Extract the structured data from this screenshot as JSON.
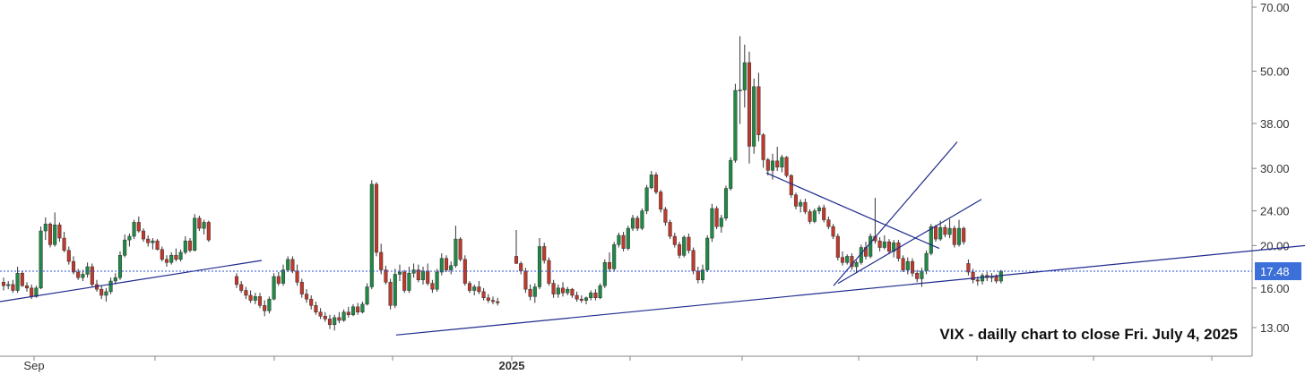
{
  "chart_data": {
    "type": "candlestick",
    "title": "VIX - dailly chart to close Fri. July 4, 2025",
    "y_scale": "log",
    "ylim": [
      11.8,
      72
    ],
    "y_ticks": [
      "70.00",
      "50.00",
      "38.00",
      "30.00",
      "24.00",
      "20.00",
      "16.00",
      "13.00"
    ],
    "x_labels": [
      {
        "label": "Sep",
        "bold": false,
        "index": 10
      },
      {
        "label": "2025",
        "bold": true,
        "index": 250
      }
    ],
    "last_price": {
      "label": "17.48",
      "value": 17.48
    },
    "colors": {
      "up": "#1e8a45",
      "down": "#c0392b",
      "wick": "#333333",
      "trendline": "#1f2a8c",
      "price_line": "#2a4fd6",
      "price_tag": "#3c6fd8"
    },
    "candles": [
      [
        16.5,
        16.9,
        15.8,
        16.2
      ],
      [
        16.2,
        16.6,
        15.9,
        16.3
      ],
      [
        16.3,
        16.7,
        15.6,
        15.8
      ],
      [
        15.8,
        17.9,
        15.6,
        17.3
      ],
      [
        17.3,
        17.5,
        16.1,
        16.2
      ],
      [
        16.2,
        16.5,
        15.7,
        16.0
      ],
      [
        16.0,
        16.3,
        15.1,
        15.3
      ],
      [
        15.3,
        16.2,
        15.2,
        16.0
      ],
      [
        16.0,
        22.1,
        15.9,
        21.6
      ],
      [
        21.6,
        23.2,
        20.6,
        22.4
      ],
      [
        22.4,
        22.6,
        19.8,
        20.1
      ],
      [
        20.1,
        23.8,
        19.9,
        22.3
      ],
      [
        22.3,
        22.6,
        20.4,
        20.8
      ],
      [
        20.8,
        21.5,
        19.3,
        19.5
      ],
      [
        19.5,
        19.9,
        18.1,
        18.4
      ],
      [
        18.4,
        18.9,
        17.2,
        17.4
      ],
      [
        17.4,
        17.7,
        16.7,
        16.9
      ],
      [
        16.9,
        17.6,
        16.6,
        17.2
      ],
      [
        17.2,
        18.3,
        16.9,
        17.9
      ],
      [
        17.9,
        18.2,
        16.1,
        16.3
      ],
      [
        16.3,
        16.7,
        15.7,
        15.9
      ],
      [
        15.9,
        16.2,
        15.1,
        15.4
      ],
      [
        15.4,
        16.0,
        14.9,
        15.7
      ],
      [
        15.7,
        16.9,
        15.5,
        16.6
      ],
      [
        16.6,
        17.3,
        16.3,
        16.9
      ],
      [
        16.9,
        19.4,
        16.7,
        19.0
      ],
      [
        19.0,
        21.2,
        18.8,
        20.6
      ],
      [
        20.6,
        21.3,
        19.9,
        21.0
      ],
      [
        21.0,
        22.9,
        20.7,
        22.6
      ],
      [
        22.6,
        23.3,
        21.4,
        21.6
      ],
      [
        21.6,
        21.9,
        20.4,
        20.7
      ],
      [
        20.7,
        21.1,
        19.9,
        20.3
      ],
      [
        20.3,
        20.8,
        19.6,
        20.5
      ],
      [
        20.5,
        20.7,
        19.5,
        19.6
      ],
      [
        19.6,
        19.9,
        18.4,
        18.6
      ],
      [
        18.6,
        19.0,
        17.9,
        18.3
      ],
      [
        18.3,
        19.3,
        18.1,
        19.0
      ],
      [
        19.0,
        19.7,
        18.4,
        18.6
      ],
      [
        18.6,
        19.6,
        18.4,
        19.3
      ],
      [
        19.3,
        21.0,
        19.1,
        20.5
      ],
      [
        20.5,
        20.8,
        19.3,
        19.5
      ],
      [
        19.5,
        23.6,
        19.4,
        23.1
      ],
      [
        23.1,
        23.4,
        21.6,
        21.9
      ],
      [
        21.9,
        22.9,
        21.2,
        22.6
      ],
      [
        22.6,
        22.8,
        20.4,
        20.6
      ],
      null,
      null,
      null,
      null,
      null,
      [
        17.0,
        17.3,
        16.0,
        16.3
      ],
      [
        16.3,
        16.6,
        15.6,
        15.8
      ],
      [
        15.8,
        16.1,
        15.1,
        15.4
      ],
      [
        15.4,
        15.8,
        14.8,
        15.0
      ],
      [
        15.0,
        15.6,
        14.7,
        15.3
      ],
      [
        15.3,
        15.6,
        14.4,
        14.6
      ],
      [
        14.6,
        15.0,
        13.8,
        14.2
      ],
      [
        14.2,
        15.3,
        14.0,
        15.1
      ],
      [
        15.1,
        17.3,
        15.0,
        17.0
      ],
      [
        17.0,
        17.4,
        16.2,
        16.4
      ],
      [
        16.4,
        18.1,
        16.2,
        17.6
      ],
      [
        17.6,
        18.9,
        17.4,
        18.6
      ],
      [
        18.6,
        18.9,
        17.3,
        17.5
      ],
      [
        17.5,
        18.1,
        16.2,
        16.5
      ],
      [
        16.5,
        16.8,
        15.2,
        15.5
      ],
      [
        15.5,
        15.9,
        14.8,
        15.1
      ],
      [
        15.1,
        15.4,
        14.3,
        14.6
      ],
      [
        14.6,
        14.9,
        13.9,
        14.1
      ],
      [
        14.1,
        14.4,
        13.6,
        13.8
      ],
      [
        13.8,
        14.1,
        13.4,
        13.6
      ],
      [
        13.6,
        13.9,
        12.9,
        13.2
      ],
      [
        13.2,
        13.9,
        12.8,
        13.7
      ],
      [
        13.7,
        14.1,
        13.3,
        13.5
      ],
      [
        13.5,
        14.3,
        13.4,
        14.1
      ],
      [
        14.1,
        14.5,
        13.7,
        13.9
      ],
      [
        13.9,
        14.7,
        13.8,
        14.5
      ],
      [
        14.5,
        14.8,
        13.9,
        14.1
      ],
      [
        14.1,
        14.9,
        14.0,
        14.7
      ],
      [
        14.7,
        16.4,
        14.6,
        16.1
      ],
      [
        16.1,
        28.2,
        15.9,
        27.6
      ],
      [
        27.6,
        27.9,
        18.9,
        19.3
      ],
      [
        19.3,
        20.2,
        17.2,
        17.6
      ],
      [
        17.6,
        18.0,
        16.3,
        16.5
      ],
      [
        16.5,
        16.8,
        14.3,
        14.6
      ],
      [
        14.6,
        17.7,
        14.4,
        17.2
      ],
      [
        17.2,
        18.1,
        16.6,
        17.4
      ],
      [
        17.4,
        17.6,
        15.6,
        15.8
      ],
      [
        15.8,
        17.9,
        15.6,
        17.3
      ],
      [
        17.3,
        18.2,
        16.9,
        17.6
      ],
      [
        17.6,
        18.1,
        16.5,
        16.7
      ],
      [
        16.7,
        17.9,
        16.3,
        17.5
      ],
      [
        17.5,
        18.2,
        16.2,
        16.4
      ],
      [
        16.4,
        16.7,
        15.6,
        15.9
      ],
      [
        15.9,
        17.7,
        15.7,
        17.4
      ],
      [
        17.4,
        19.2,
        17.1,
        18.7
      ],
      [
        18.7,
        19.0,
        17.4,
        17.6
      ],
      [
        17.6,
        18.4,
        17.2,
        18.0
      ],
      [
        18.0,
        22.2,
        17.8,
        20.7
      ],
      [
        20.7,
        20.9,
        18.4,
        18.6
      ],
      [
        18.6,
        19.0,
        16.2,
        16.4
      ],
      [
        16.4,
        16.6,
        15.6,
        15.8
      ],
      [
        15.8,
        16.3,
        15.4,
        16.1
      ],
      [
        16.1,
        16.6,
        15.5,
        15.7
      ],
      [
        15.7,
        16.0,
        15.0,
        15.2
      ],
      [
        15.2,
        15.5,
        14.8,
        15.0
      ],
      [
        15.0,
        15.3,
        14.7,
        14.9
      ],
      [
        14.9,
        15.2,
        14.6,
        14.8
      ],
      null,
      null,
      null,
      [
        18.9,
        21.7,
        18.7,
        18.2
      ],
      [
        18.2,
        18.4,
        17.2,
        17.5
      ],
      [
        17.5,
        17.8,
        15.6,
        15.9
      ],
      [
        15.9,
        16.3,
        15.0,
        15.3
      ],
      [
        15.3,
        16.4,
        14.8,
        16.1
      ],
      [
        16.1,
        20.8,
        15.9,
        19.9
      ],
      [
        19.9,
        20.3,
        18.2,
        18.5
      ],
      [
        18.5,
        18.8,
        16.2,
        16.4
      ],
      [
        16.4,
        16.7,
        15.2,
        15.5
      ],
      [
        15.5,
        16.3,
        15.2,
        16.0
      ],
      [
        16.0,
        16.5,
        15.3,
        15.6
      ],
      [
        15.6,
        16.1,
        15.4,
        15.9
      ],
      [
        15.9,
        16.0,
        15.2,
        15.4
      ],
      [
        15.4,
        15.7,
        14.9,
        15.1
      ],
      [
        15.1,
        15.4,
        14.8,
        15.0
      ],
      [
        15.0,
        15.3,
        14.7,
        15.2
      ],
      [
        15.2,
        15.8,
        15.0,
        15.6
      ],
      [
        15.6,
        15.9,
        15.0,
        15.2
      ],
      [
        15.2,
        16.4,
        15.1,
        16.2
      ],
      [
        16.2,
        18.6,
        16.0,
        18.3
      ],
      [
        18.3,
        19.3,
        17.4,
        17.7
      ],
      [
        17.7,
        20.4,
        17.5,
        20.1
      ],
      [
        20.1,
        21.4,
        19.8,
        21.1
      ],
      [
        21.1,
        21.5,
        19.4,
        19.7
      ],
      [
        19.7,
        22.2,
        19.5,
        21.9
      ],
      [
        21.9,
        23.5,
        21.6,
        23.1
      ],
      [
        23.1,
        23.4,
        21.6,
        21.9
      ],
      [
        21.9,
        24.3,
        21.7,
        24.0
      ],
      [
        24.0,
        27.5,
        23.6,
        27.1
      ],
      [
        27.1,
        29.6,
        26.9,
        29.0
      ],
      [
        29.0,
        29.4,
        26.2,
        26.5
      ],
      [
        26.5,
        26.8,
        23.8,
        24.2
      ],
      [
        24.2,
        24.5,
        22.2,
        22.6
      ],
      [
        22.6,
        22.9,
        20.7,
        21.0
      ],
      [
        21.0,
        21.4,
        19.8,
        20.1
      ],
      [
        20.1,
        20.4,
        18.7,
        19.0
      ],
      [
        19.0,
        21.1,
        18.8,
        20.9
      ],
      [
        20.9,
        21.3,
        19.2,
        19.5
      ],
      [
        19.5,
        19.8,
        17.2,
        17.5
      ],
      [
        17.5,
        17.9,
        16.4,
        16.7
      ],
      [
        16.7,
        18.1,
        16.4,
        17.6
      ],
      [
        17.6,
        21.1,
        17.4,
        20.8
      ],
      [
        20.8,
        24.9,
        20.4,
        24.3
      ],
      [
        24.3,
        24.6,
        21.8,
        22.1
      ],
      [
        22.1,
        23.5,
        21.4,
        23.1
      ],
      [
        23.1,
        27.4,
        22.8,
        27.0
      ],
      [
        27.0,
        31.8,
        26.7,
        31.3
      ],
      [
        31.3,
        46.8,
        30.9,
        45.2
      ],
      [
        45.2,
        60.1,
        37.9,
        45.3
      ],
      [
        45.3,
        57.5,
        41.3,
        52.3
      ],
      [
        52.3,
        55.4,
        30.8,
        33.7
      ],
      [
        33.7,
        48.1,
        32.4,
        46.1
      ],
      [
        46.1,
        49.6,
        34.6,
        35.8
      ],
      [
        35.8,
        36.1,
        30.1,
        31.4
      ],
      [
        31.4,
        31.7,
        28.9,
        29.7
      ],
      [
        29.7,
        32.4,
        28.3,
        31.2
      ],
      [
        31.2,
        33.6,
        29.6,
        30.2
      ],
      [
        30.2,
        32.2,
        29.4,
        31.8
      ],
      [
        31.8,
        32.0,
        28.6,
        28.9
      ],
      [
        28.9,
        29.1,
        25.7,
        26.1
      ],
      [
        26.1,
        26.4,
        24.2,
        24.6
      ],
      [
        24.6,
        25.5,
        23.8,
        25.1
      ],
      [
        25.1,
        25.6,
        23.6,
        23.9
      ],
      [
        23.9,
        24.2,
        22.4,
        22.7
      ],
      [
        22.7,
        24.3,
        22.5,
        24.0
      ],
      [
        24.0,
        24.7,
        23.6,
        24.4
      ],
      [
        24.4,
        24.8,
        22.6,
        22.9
      ],
      [
        22.9,
        23.3,
        21.8,
        22.1
      ],
      [
        22.1,
        22.4,
        20.7,
        21.0
      ],
      [
        21.0,
        21.3,
        18.5,
        18.8
      ],
      [
        18.8,
        19.4,
        18.0,
        18.3
      ],
      [
        18.3,
        19.1,
        18.1,
        18.9
      ],
      [
        18.9,
        19.2,
        17.6,
        17.9
      ],
      [
        17.9,
        18.5,
        17.3,
        18.3
      ],
      [
        18.3,
        20.1,
        18.1,
        19.8
      ],
      [
        19.8,
        20.4,
        18.6,
        18.9
      ],
      [
        18.9,
        21.3,
        18.7,
        21.0
      ],
      [
        21.0,
        25.7,
        20.2,
        20.5
      ],
      [
        20.5,
        20.9,
        19.4,
        19.8
      ],
      [
        19.8,
        21.1,
        19.6,
        20.4
      ],
      [
        20.4,
        20.7,
        19.1,
        19.4
      ],
      [
        19.4,
        20.6,
        18.8,
        20.3
      ],
      [
        20.3,
        20.6,
        18.4,
        18.7
      ],
      [
        18.7,
        19.0,
        17.4,
        17.6
      ],
      [
        17.6,
        18.8,
        17.2,
        18.4
      ],
      [
        18.4,
        18.7,
        17.0,
        17.3
      ],
      [
        17.3,
        17.6,
        16.5,
        16.8
      ],
      [
        16.8,
        17.8,
        16.1,
        17.5
      ],
      [
        17.5,
        19.5,
        17.2,
        19.2
      ],
      [
        19.2,
        22.4,
        19.0,
        22.1
      ],
      [
        22.1,
        22.3,
        20.4,
        20.7
      ],
      [
        20.7,
        22.8,
        20.5,
        22.0
      ],
      [
        22.0,
        22.3,
        20.9,
        21.2
      ],
      [
        21.2,
        23.0,
        20.8,
        21.9
      ],
      [
        21.9,
        22.2,
        19.8,
        20.1
      ],
      [
        20.1,
        22.9,
        19.9,
        21.9
      ],
      [
        21.9,
        22.1,
        20.1,
        20.4
      ],
      [
        18.2,
        18.6,
        17.1,
        17.4
      ],
      [
        17.4,
        17.7,
        16.4,
        16.7
      ],
      [
        16.7,
        17.0,
        16.2,
        16.6
      ],
      [
        16.6,
        17.3,
        16.3,
        17.1
      ],
      [
        17.1,
        17.4,
        16.6,
        16.9
      ],
      [
        16.9,
        17.3,
        16.5,
        17.0
      ],
      [
        17.0,
        17.2,
        16.4,
        16.6
      ],
      [
        16.6,
        17.6,
        16.4,
        17.48
      ]
    ],
    "trendlines": [
      {
        "x1": 0,
        "y1": 14.9,
        "x2": 292,
        "y2": 18.5
      },
      {
        "x1": 442,
        "y1": 12.5,
        "x2": 1456,
        "y2": 20.0
      },
      {
        "x1": 855,
        "y1": 29.3,
        "x2": 1048,
        "y2": 19.7
      },
      {
        "x1": 930,
        "y1": 16.2,
        "x2": 1068,
        "y2": 34.5
      },
      {
        "x1": 935,
        "y1": 16.4,
        "x2": 1095,
        "y2": 25.5
      }
    ]
  }
}
